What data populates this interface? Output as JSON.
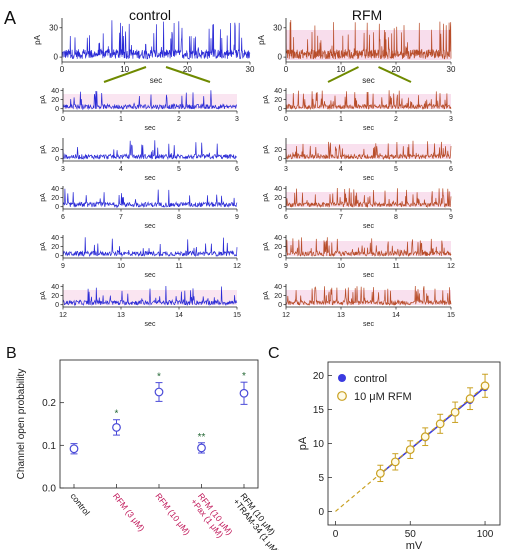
{
  "panel_letters": {
    "a": "A",
    "b": "B",
    "c": "C"
  },
  "panel_a": {
    "control_title": "control",
    "rfm_title": "RFM",
    "unit_label": "pA",
    "time_label": "sec",
    "colors": {
      "control": "#2b2bd6",
      "rfm": "#b84d2a",
      "zoom_lines": "#6f8a00",
      "pink_band": "#f4c6e0"
    }
  },
  "chart_data": [
    {
      "type": "line",
      "panel": "A",
      "title": "control",
      "xlabel": "sec",
      "ylabel": "pA",
      "xlim": [
        0,
        30
      ],
      "ylim": [
        -5,
        40
      ],
      "xticks": [
        "0",
        "10",
        "20",
        "30"
      ],
      "yticks": [
        "0",
        "30"
      ],
      "series": [
        {
          "name": "control",
          "color": "#2b2bd6"
        }
      ],
      "zoom_segments": [
        {
          "xlim": [
            0,
            3
          ],
          "xticks": [
            "0",
            "1",
            "2",
            "3"
          ],
          "yticks": [
            "0",
            "20",
            "40"
          ]
        },
        {
          "xlim": [
            3,
            6
          ],
          "xticks": [
            "3",
            "4",
            "5",
            "6"
          ],
          "yticks": [
            "0",
            "20"
          ]
        },
        {
          "xlim": [
            6,
            9
          ],
          "xticks": [
            "6",
            "7",
            "8",
            "9"
          ],
          "yticks": [
            "0",
            "20",
            "40"
          ]
        },
        {
          "xlim": [
            9,
            12
          ],
          "xticks": [
            "9",
            "10",
            "11",
            "12"
          ],
          "yticks": [
            "0",
            "20",
            "40"
          ]
        },
        {
          "xlim": [
            12,
            15
          ],
          "xticks": [
            "12",
            "13",
            "14",
            "15"
          ],
          "yticks": [
            "0",
            "20",
            "40"
          ]
        }
      ]
    },
    {
      "type": "line",
      "panel": "A",
      "title": "RFM",
      "xlabel": "sec",
      "ylabel": "pA",
      "xlim": [
        0,
        30
      ],
      "ylim": [
        -5,
        40
      ],
      "xticks": [
        "0",
        "10",
        "20",
        "30"
      ],
      "yticks": [
        "0",
        "30"
      ],
      "series": [
        {
          "name": "RFM",
          "color": "#b84d2a"
        }
      ],
      "zoom_segments": [
        {
          "xlim": [
            0,
            3
          ],
          "xticks": [
            "0",
            "1",
            "2",
            "3"
          ],
          "yticks": [
            "0",
            "20",
            "40"
          ]
        },
        {
          "xlim": [
            3,
            6
          ],
          "xticks": [
            "3",
            "4",
            "5",
            "6"
          ],
          "yticks": [
            "0",
            "20"
          ]
        },
        {
          "xlim": [
            6,
            9
          ],
          "xticks": [
            "6",
            "7",
            "8",
            "9"
          ],
          "yticks": [
            "0",
            "20",
            "40"
          ]
        },
        {
          "xlim": [
            9,
            12
          ],
          "xticks": [
            "9",
            "10",
            "11",
            "12"
          ],
          "yticks": [
            "0",
            "20",
            "40"
          ]
        },
        {
          "xlim": [
            12,
            15
          ],
          "xticks": [
            "12",
            "13",
            "14",
            "15"
          ],
          "yticks": [
            "0",
            "20",
            "40"
          ]
        }
      ]
    },
    {
      "type": "scatter",
      "panel": "B",
      "ylabel": "Channel open probability",
      "ylim": [
        0.0,
        0.3
      ],
      "yticks": [
        "0.0",
        "0.1",
        "0.2"
      ],
      "categories": [
        [
          "control"
        ],
        [
          "RFM (3 μM)"
        ],
        [
          "RFM (10 μM)"
        ],
        [
          "RFM (10 μM)",
          "+Pax (1 μM)"
        ],
        [
          "RFM (10 μM)",
          "+TRAM-34 (1 μM)"
        ]
      ],
      "series": [
        {
          "values": [
            0.092,
            0.142,
            0.225,
            0.094,
            0.222
          ],
          "errors": [
            0.012,
            0.018,
            0.022,
            0.012,
            0.026
          ],
          "annotations": [
            "",
            "*",
            "*",
            "**",
            "*"
          ]
        }
      ],
      "marker_color": "#4a4ad8",
      "category_colors": [
        "#111111",
        "#c0185a",
        "#c0185a",
        "#c0185a",
        "#111111"
      ]
    },
    {
      "type": "scatter",
      "panel": "C",
      "xlabel": "mV",
      "ylabel": "pA",
      "xlim": [
        -5,
        110
      ],
      "ylim": [
        -2,
        22
      ],
      "xticks": [
        0,
        50,
        100
      ],
      "yticks": [
        0,
        5,
        10,
        15,
        20
      ],
      "series": [
        {
          "name": "control",
          "color": "#3a3ae0",
          "marker": "filled",
          "x": [
            30,
            40,
            50,
            60,
            70,
            80,
            90,
            100
          ],
          "y": [
            5.5,
            7.2,
            9.0,
            10.8,
            12.8,
            14.5,
            16.3,
            18.2
          ]
        },
        {
          "name": "10 μM RFM",
          "color": "#c9a020",
          "marker": "open",
          "x": [
            30,
            40,
            50,
            60,
            70,
            80,
            90,
            100
          ],
          "y": [
            5.6,
            7.3,
            9.1,
            11.0,
            12.9,
            14.6,
            16.6,
            18.5
          ],
          "errors": [
            1.2,
            1.2,
            1.3,
            1.3,
            1.4,
            1.5,
            1.6,
            1.7
          ]
        }
      ],
      "fit_lines": [
        {
          "series": "control",
          "color": "#3a3ae0",
          "x": [
            30,
            100
          ],
          "y": [
            5.5,
            18.3
          ]
        },
        {
          "series": "10 μM RFM",
          "color": "#c9a020",
          "dashed": true,
          "x": [
            0,
            100
          ],
          "y": [
            0,
            18.5
          ]
        }
      ]
    }
  ]
}
